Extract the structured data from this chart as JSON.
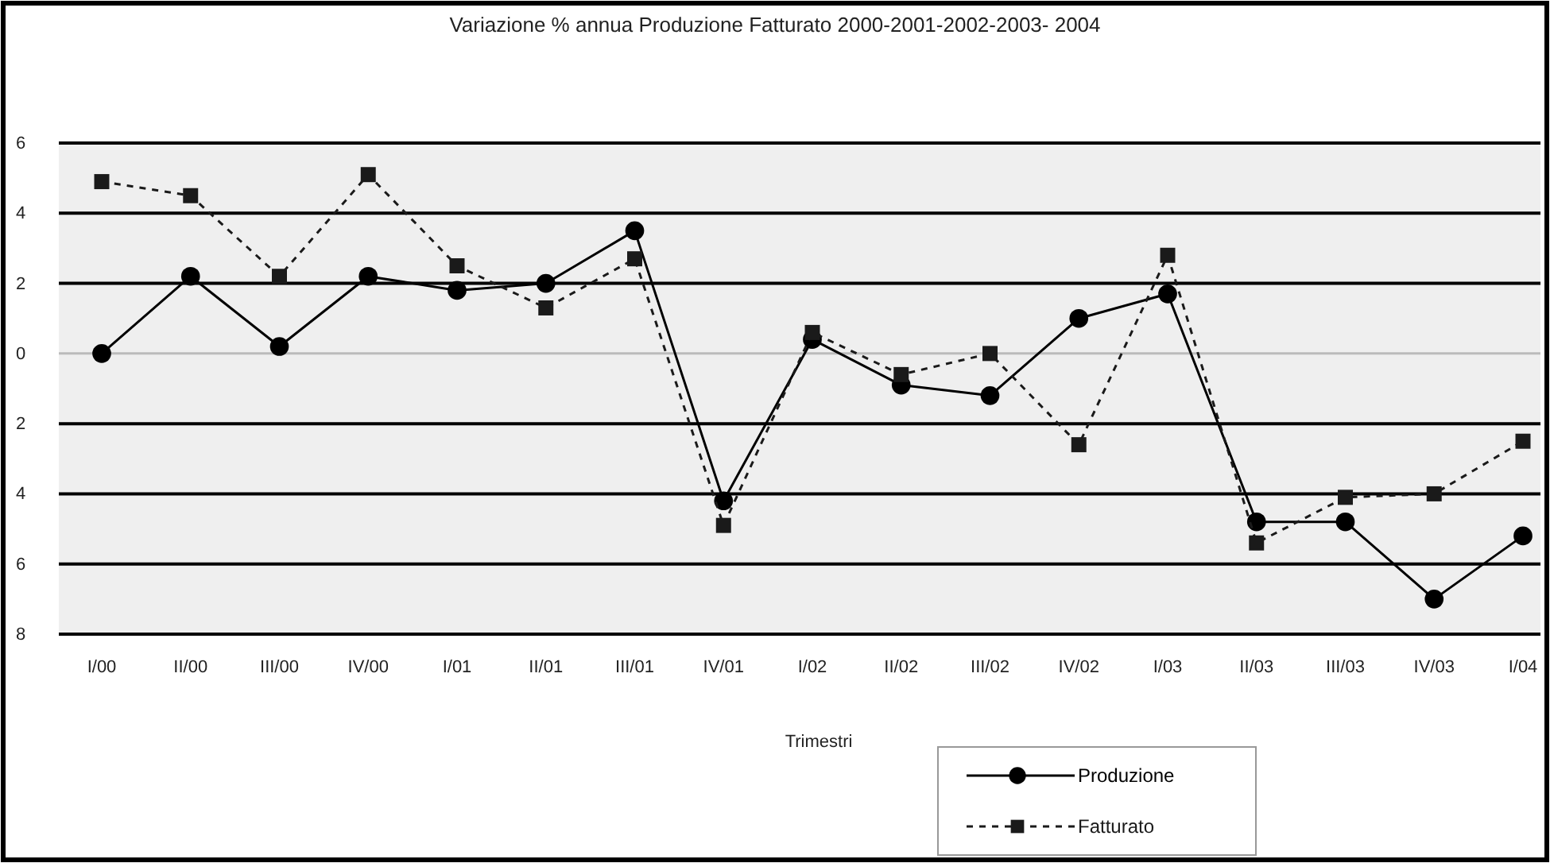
{
  "chart_data": {
    "type": "line",
    "title": "Variazione % annua Produzione Fatturato 2000-2001-2002-2003- 2004",
    "xlabel": "Trimestri",
    "categories": [
      "I/00",
      "II/00",
      "III/00",
      "IV/00",
      "I/01",
      "II/01",
      "III/01",
      "IV/01",
      "I/02",
      "II/02",
      "III/02",
      "IV/02",
      "I/03",
      "II/03",
      "III/03",
      "IV/03",
      "I/04"
    ],
    "series": [
      {
        "name": "Produzione",
        "color": "#000000",
        "marker": "circle",
        "line_style": "solid",
        "values": [
          0,
          2.2,
          0.2,
          2.2,
          1.8,
          2.0,
          3.5,
          -4.2,
          0.4,
          -0.9,
          -1.2,
          1.0,
          1.7,
          -4.8,
          -4.8,
          -7.0,
          -5.2
        ]
      },
      {
        "name": "Fatturato",
        "color": "#1a1a1a",
        "marker": "square",
        "line_style": "dashed",
        "values": [
          4.9,
          4.5,
          2.2,
          5.1,
          2.5,
          1.3,
          2.7,
          -4.9,
          0.6,
          -0.6,
          0.0,
          -2.6,
          2.8,
          -5.4,
          -4.1,
          -4.0,
          -2.5
        ]
      }
    ],
    "ylim": [
      -8,
      6
    ],
    "yticks": [
      {
        "value": -8,
        "label": "8"
      },
      {
        "value": -6,
        "label": "6"
      },
      {
        "value": -4,
        "label": "4"
      },
      {
        "value": -2,
        "label": "2"
      },
      0,
      2,
      4,
      6
    ],
    "grid": "y",
    "legend": "bottom right"
  }
}
